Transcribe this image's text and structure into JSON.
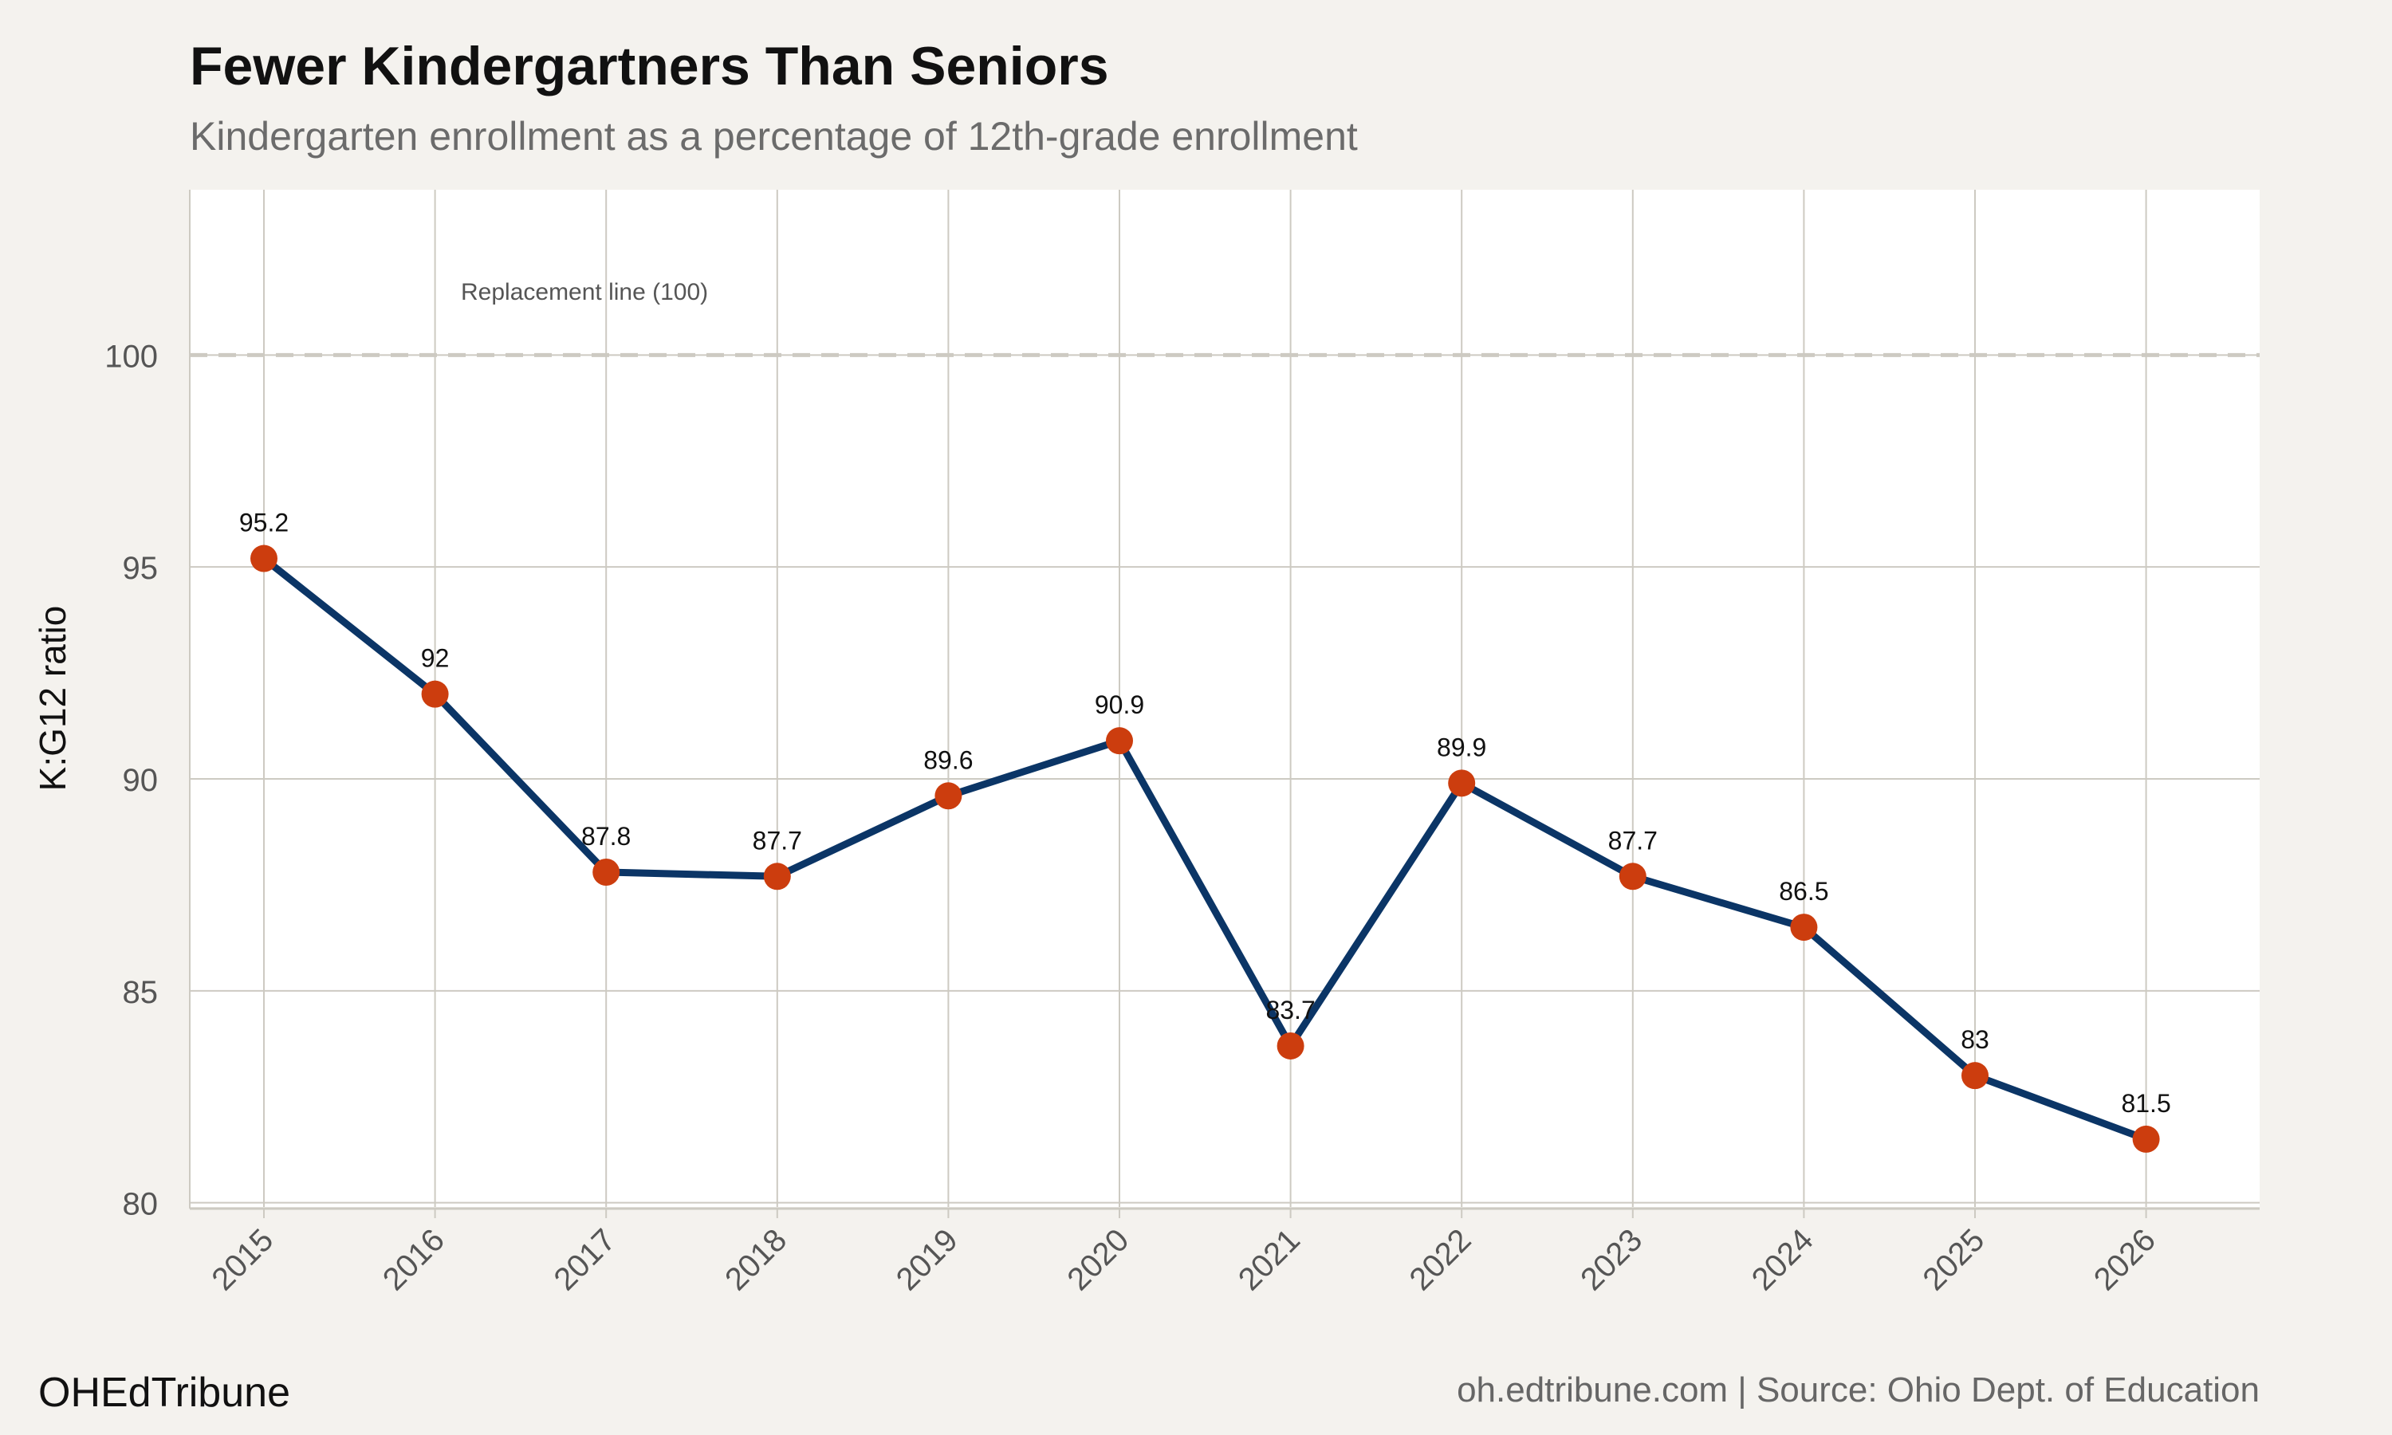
{
  "brand": "OHEdTribune",
  "source": "oh.edtribune.com | Source: Ohio Dept. of Education",
  "chart_data": {
    "type": "line",
    "title": "Fewer Kindergartners Than Seniors",
    "subtitle": "Kindergarten enrollment as a percentage of 12th-grade enrollment",
    "xlabel": "",
    "ylabel": "K:G12 ratio",
    "categories": [
      "2015",
      "2016",
      "2017",
      "2018",
      "2019",
      "2020",
      "2021",
      "2022",
      "2023",
      "2024",
      "2025",
      "2026"
    ],
    "series": [
      {
        "name": "K:G12 ratio",
        "values": [
          95.2,
          92,
          87.8,
          87.7,
          89.6,
          90.9,
          83.7,
          89.9,
          87.7,
          86.5,
          83,
          81.5
        ],
        "labels": [
          "95.2",
          "92",
          "87.8",
          "87.7",
          "89.6",
          "90.9",
          "83.7",
          "89.9",
          "87.7",
          "86.5",
          "83",
          "81.5"
        ]
      }
    ],
    "ylim": [
      79.9,
      103.9
    ],
    "yticks": [
      80,
      85,
      90,
      95,
      100
    ],
    "ytick_labels": [
      "80",
      "85",
      "90",
      "95",
      "100"
    ],
    "reference_line": {
      "value": 100,
      "label": "Replacement line (100)"
    },
    "grid": true,
    "colors": {
      "line": "#0b3566",
      "marker": "#cc3d0e",
      "panel": "#ffffff",
      "background": "#f4f2ee",
      "grid": "#cdcac2",
      "reference": "#cdcac2"
    }
  }
}
